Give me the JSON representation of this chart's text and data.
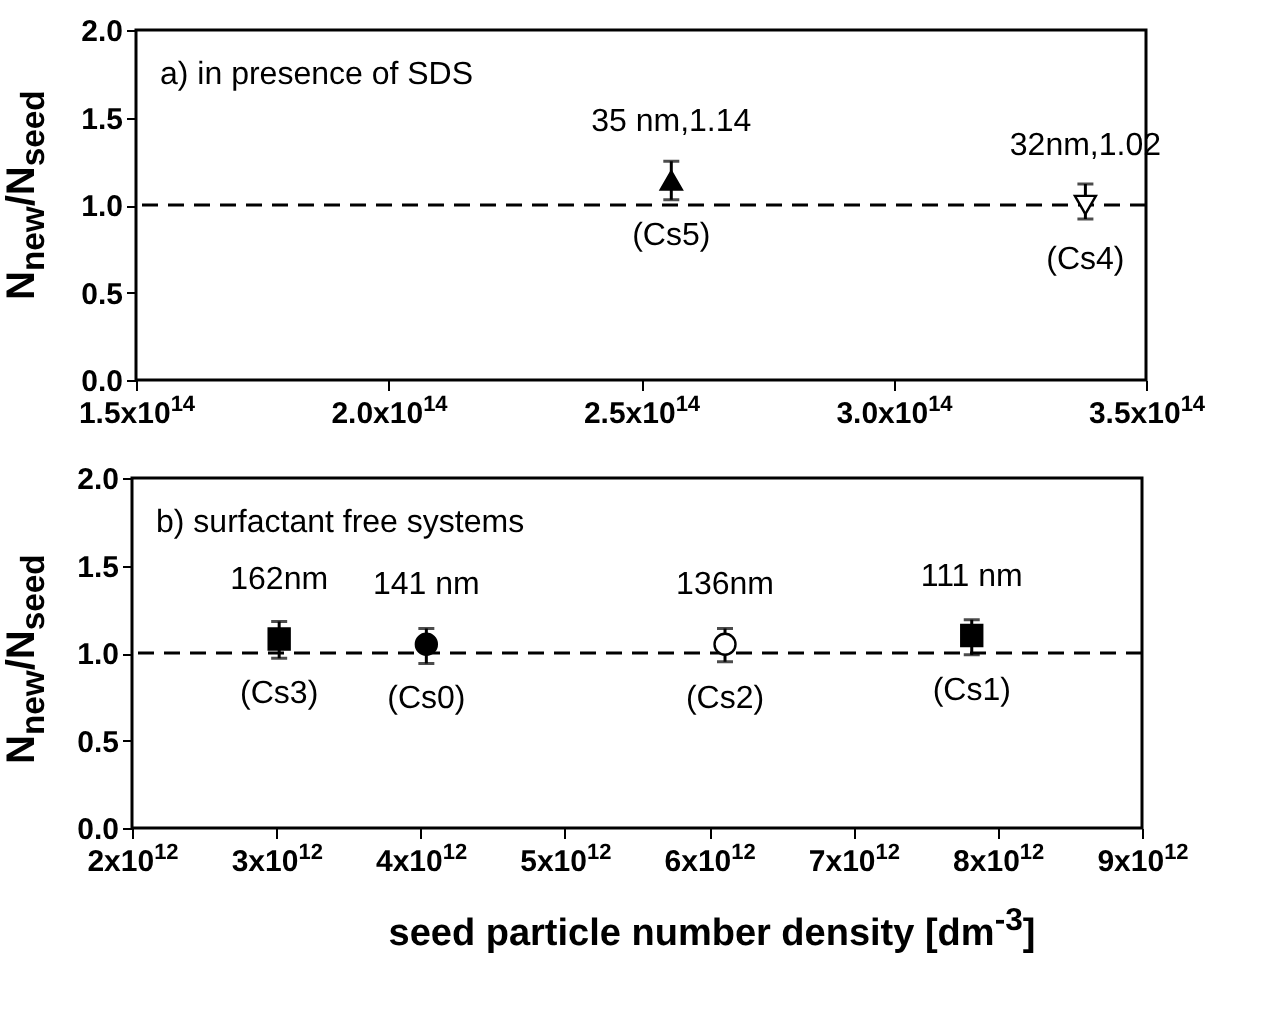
{
  "chart_data": [
    {
      "type": "scatter",
      "title": "a) in presence of SDS",
      "ylabel": "N$_{new}$/N$_{seed}$",
      "xlim": [
        150000000000000.0,
        350000000000000.0
      ],
      "xticks": [
        {
          "value": 150000000000000.0,
          "label": "1.5x10$^{14}$"
        },
        {
          "value": 200000000000000.0,
          "label": "2.0x10$^{14}$"
        },
        {
          "value": 250000000000000.0,
          "label": "2.5x10$^{14}$"
        },
        {
          "value": 300000000000000.0,
          "label": "3.0x10$^{14}$"
        },
        {
          "value": 350000000000000.0,
          "label": "3.5x10$^{14}$"
        }
      ],
      "ylim": [
        0,
        2
      ],
      "yticks": [
        {
          "value": 0,
          "label": "0.0"
        },
        {
          "value": 0.5,
          "label": "0.5"
        },
        {
          "value": 1,
          "label": "1.0"
        },
        {
          "value": 1.5,
          "label": "1.5"
        },
        {
          "value": 2,
          "label": "2.0"
        }
      ],
      "series": [
        {
          "color": "#000000",
          "marker": "triangle",
          "x": [
            256000000000000.0
          ],
          "values": [
            1.14
          ],
          "errors": [
            [
              1.03,
              1.25
            ]
          ]
        },
        {
          "color": "#ffffff",
          "marker": "triangle-down",
          "x": [
            338000000000000.0
          ],
          "values": [
            1.0
          ],
          "errors": [
            [
              0.92,
              1.12
            ]
          ]
        }
      ],
      "ref_lines": [
        {
          "axis": "y",
          "value": 1,
          "line_style": "dashed",
          "color": "#000000"
        }
      ],
      "annotations": [
        {
          "text": "35 nm,1.14",
          "x": 256000000000000.0,
          "y": 1.14
        },
        {
          "text": "(Cs5)",
          "x": 256000000000000.0,
          "y": 1.14
        },
        {
          "text": "32nm,1.02",
          "x": 338000000000000.0,
          "y": 1.0
        },
        {
          "text": "(Cs4)",
          "x": 338000000000000.0,
          "y": 1.0
        }
      ]
    },
    {
      "type": "scatter",
      "title": "b) surfactant free systems",
      "ylabel": "N$_{new}$/N$_{seed}$",
      "xlabel": "seed particle number density [dm$^{-3}$]",
      "xlim": [
        2000000000000.0,
        9000000000000.0
      ],
      "xticks": [
        {
          "value": 2000000000000.0,
          "label": "2x10$^{12}$"
        },
        {
          "value": 3000000000000.0,
          "label": "3x10$^{12}$"
        },
        {
          "value": 4000000000000.0,
          "label": "4x10$^{12}$"
        },
        {
          "value": 5000000000000.0,
          "label": "5x10$^{12}$"
        },
        {
          "value": 6000000000000.0,
          "label": "6x10$^{12}$"
        },
        {
          "value": 7000000000000.0,
          "label": "7x10$^{12}$"
        },
        {
          "value": 8000000000000.0,
          "label": "8x10$^{12}$"
        },
        {
          "value": 9000000000000.0,
          "label": "9x10$^{12}$"
        }
      ],
      "ylim": [
        0,
        2
      ],
      "yticks": [
        {
          "value": 0,
          "label": "0.0"
        },
        {
          "value": 0.5,
          "label": "0.5"
        },
        {
          "value": 1,
          "label": "1.0"
        },
        {
          "value": 1.5,
          "label": "1.5"
        },
        {
          "value": 2,
          "label": "2.0"
        }
      ],
      "series": [
        {
          "color": "#000000",
          "marker": "square",
          "x": [
            3020000000000.0,
            7820000000000.0
          ],
          "values": [
            1.08,
            1.1
          ],
          "errors": [
            [
              0.97,
              1.18
            ],
            [
              0.99,
              1.19
            ]
          ]
        },
        {
          "color": "#000000",
          "marker": "circle",
          "x": [
            4040000000000.0
          ],
          "values": [
            1.05
          ],
          "errors": [
            [
              0.94,
              1.14
            ]
          ]
        },
        {
          "color": "#ffffff",
          "marker": "circle",
          "x": [
            6110000000000.0
          ],
          "values": [
            1.05
          ],
          "errors": [
            [
              0.95,
              1.14
            ]
          ]
        }
      ],
      "ref_lines": [
        {
          "axis": "y",
          "value": 1,
          "line_style": "dashed",
          "color": "#000000"
        }
      ],
      "annotations": [
        {
          "text": "162nm",
          "x": 3020000000000.0,
          "y": 1.08
        },
        {
          "text": "(Cs3)",
          "x": 3020000000000.0,
          "y": 1.08
        },
        {
          "text": "141 nm",
          "x": 4040000000000.0,
          "y": 1.05
        },
        {
          "text": "(Cs0)",
          "x": 4040000000000.0,
          "y": 1.05
        },
        {
          "text": "136nm",
          "x": 6110000000000.0,
          "y": 1.05
        },
        {
          "text": "(Cs2)",
          "x": 6110000000000.0,
          "y": 1.05
        },
        {
          "text": "111 nm",
          "x": 7820000000000.0,
          "y": 1.1
        },
        {
          "text": "(Cs1)",
          "x": 7820000000000.0,
          "y": 1.1
        }
      ]
    }
  ]
}
